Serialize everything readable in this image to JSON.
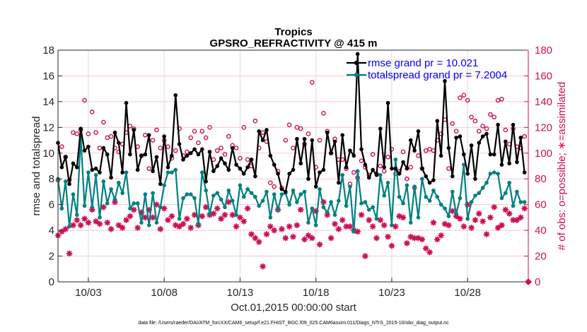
{
  "chart_data": {
    "type": "line",
    "title": "Tropics",
    "subtitle": "GPSRO_REFRACTIVITY @ 415 m",
    "xlabel": "Oct.01,2015 00:00:00 start",
    "ylabel": "rmse and totalspread",
    "ylabel_right": "# of obs: o=possible; ∗=assimilated",
    "footer": "data file: /Users/raeder/DAI/ATM_forcXX/CAM6_setup/f.e21.FHIST_BGC.f09_025.CAM6assim.011/Diags_NTrS_2015-10/obs_diag_output.nc",
    "x_start_day": 1,
    "x_step_days": 0.25,
    "xlim_days": [
      1,
      32
    ],
    "x_ticks": [
      {
        "day": 3,
        "label": "10/03"
      },
      {
        "day": 8,
        "label": "10/08"
      },
      {
        "day": 13,
        "label": "10/13"
      },
      {
        "day": 18,
        "label": "10/18"
      },
      {
        "day": 23,
        "label": "10/23"
      },
      {
        "day": 28,
        "label": "10/28"
      }
    ],
    "ylim": [
      0,
      18
    ],
    "y_ticks": [
      0,
      2,
      4,
      6,
      8,
      10,
      12,
      14,
      16,
      18
    ],
    "ylim_right": [
      0,
      180
    ],
    "y_ticks_right": [
      0,
      20,
      40,
      60,
      80,
      100,
      120,
      140,
      160,
      180
    ],
    "grid": true,
    "legend_position": "top-right",
    "series": [
      {
        "name": "rmse grand pr = 10.021",
        "axis": "left",
        "color": "#000000",
        "values": [
          10.8,
          8.9,
          9.7,
          7.6,
          9.2,
          8.9,
          11.9,
          10.2,
          10.5,
          8.7,
          8.8,
          8.5,
          10.4,
          9.9,
          8.1,
          11.6,
          10.8,
          8.5,
          13.9,
          9.9,
          11.8,
          8.7,
          9.8,
          9.9,
          11.4,
          8.6,
          9.7,
          7.6,
          11.3,
          8.9,
          9.8,
          14.5,
          10.7,
          9.5,
          9.8,
          10.0,
          10.3,
          9.9,
          10.3,
          7.8,
          10.1,
          8.6,
          9.0,
          9.6,
          9.2,
          8.7,
          10.4,
          9.1,
          8.8,
          8.4,
          8.9,
          9.5,
          8.2,
          11.7,
          11.0,
          11.8,
          9.8,
          9.1,
          8.4,
          7.2,
          7.0,
          8.4,
          8.7,
          11.1,
          9.2,
          11.1,
          8.0,
          11.0,
          7.4,
          8.5,
          8.7,
          11.6,
          10.0,
          10.9,
          7.7,
          11.4,
          8.9,
          10.2,
          9.8,
          17.7,
          10.3,
          9.1,
          8.1,
          8.7,
          8.3,
          11.9,
          8.9,
          13.9,
          8.8,
          8.8,
          8.4,
          9.3,
          8.8,
          11.0,
          10.2,
          11.7,
          8.8,
          8.2,
          7.7,
          7.9,
          12.5,
          9.8,
          15.6,
          10.4,
          8.2,
          11.2,
          11.3,
          9.9,
          8.4,
          10.6,
          8.0,
          10.8,
          11.3,
          11.5,
          9.9,
          9.9,
          12.2,
          9.1,
          10.9,
          9.2,
          12.2,
          9.3,
          11.2,
          8.5
        ]
      },
      {
        "name": "totalspread grand pr = 7.2004",
        "axis": "left",
        "color": "#008080",
        "values": [
          8.0,
          5.7,
          7.8,
          4.3,
          6.8,
          5.2,
          11.3,
          5.9,
          8.5,
          5.8,
          8.3,
          5.0,
          7.8,
          6.1,
          7.2,
          6.4,
          7.7,
          6.9,
          8.5,
          5.7,
          6.1,
          6.1,
          4.6,
          6.8,
          4.4,
          6.9,
          4.6,
          5.8,
          7.5,
          8.5,
          8.5,
          8.7,
          4.9,
          6.5,
          6.8,
          6.8,
          6.5,
          4.5,
          8.5,
          7.1,
          5.3,
          6.7,
          6.9,
          6.4,
          5.8,
          7.1,
          6.3,
          5.2,
          7.5,
          6.6,
          7.2,
          6.9,
          6.6,
          5.9,
          6.3,
          7.0,
          5.0,
          6.8,
          5.6,
          6.8,
          6.9,
          6.0,
          7.1,
          6.2,
          6.8,
          7.0,
          4.6,
          5.7,
          4.4,
          7.2,
          5.8,
          5.4,
          6.2,
          5.2,
          6.3,
          8.3,
          5.9,
          7.4,
          3.9,
          8.6,
          6.1,
          6.2,
          5.6,
          5.8,
          4.9,
          8.3,
          6.7,
          7.7,
          4.4,
          9.5,
          6.6,
          6.1,
          7.5,
          4.6,
          7.4,
          5.0,
          8.0,
          6.6,
          6.3,
          7.1,
          6.6,
          6.0,
          5.7,
          5.1,
          7.0,
          5.3,
          6.5,
          9.1,
          4.9,
          6.2,
          6.7,
          6.9,
          7.3,
          7.7,
          8.4,
          8.5,
          8.4,
          6.5,
          6.9,
          7.7,
          5.9,
          7.0,
          6.2,
          6.2
        ]
      },
      {
        "name": "possible",
        "axis": "right",
        "color": "#cc0f55",
        "marker": "o",
        "values": [
          79,
          105,
          97,
          79,
          116,
          115,
          118,
          141,
          115,
          132,
          116,
          104,
          124,
          112,
          113,
          104,
          101,
          107,
          116,
          121,
          119,
          105,
          98,
          114,
          88,
          110,
          118,
          104,
          110,
          105,
          96,
          102,
          119,
          98,
          101,
          112,
          117,
          108,
          117,
          112,
          120,
          95,
          102,
          104,
          99,
          113,
          106,
          104,
          96,
          120,
          95,
          90,
          125,
          104,
          116,
          109,
          77,
          74,
          86,
          73,
          110,
          122,
          104,
          120,
          119,
          107,
          115,
          155,
          89,
          110,
          131,
          117,
          100,
          111,
          95,
          95,
          88,
          76,
          85,
          81,
          94,
          89,
          83,
          99,
          84,
          90,
          86,
          97,
          103,
          84,
          86,
          101,
          80,
          89,
          73,
          98,
          88,
          102,
          103,
          102,
          110,
          115,
          126,
          88,
          123,
          117,
          143,
          145,
          141,
          128,
          125,
          117,
          121,
          119,
          130,
          128,
          141,
          142,
          118,
          107,
          119,
          105,
          104,
          113
        ]
      },
      {
        "name": "assimilated",
        "axis": "right",
        "color": "#cc0f55",
        "marker": "*",
        "values": [
          36,
          39,
          41,
          22,
          44,
          48,
          44,
          49,
          46,
          56,
          47,
          45,
          58,
          46,
          41,
          62,
          44,
          42,
          48,
          51,
          56,
          42,
          54,
          50,
          56,
          50,
          60,
          41,
          57,
          48,
          51,
          44,
          43,
          45,
          49,
          42,
          52,
          44,
          51,
          58,
          52,
          53,
          57,
          49,
          52,
          62,
          52,
          43,
          50,
          47,
          57,
          37,
          34,
          31,
          12,
          37,
          43,
          40,
          56,
          41,
          34,
          43,
          35,
          44,
          56,
          33,
          36,
          34,
          55,
          29,
          62,
          52,
          34,
          45,
          41,
          48,
          43,
          43,
          40,
          39,
          52,
          20,
          48,
          43,
          34,
          48,
          44,
          35,
          28,
          43,
          51,
          50,
          30,
          35,
          34,
          34,
          33,
          26,
          23,
          46,
          33,
          36,
          45,
          44,
          55,
          51,
          49,
          43,
          60,
          42,
          48,
          53,
          47,
          37,
          50,
          58,
          42,
          44,
          56,
          53,
          48,
          48,
          50,
          57
        ]
      }
    ]
  }
}
